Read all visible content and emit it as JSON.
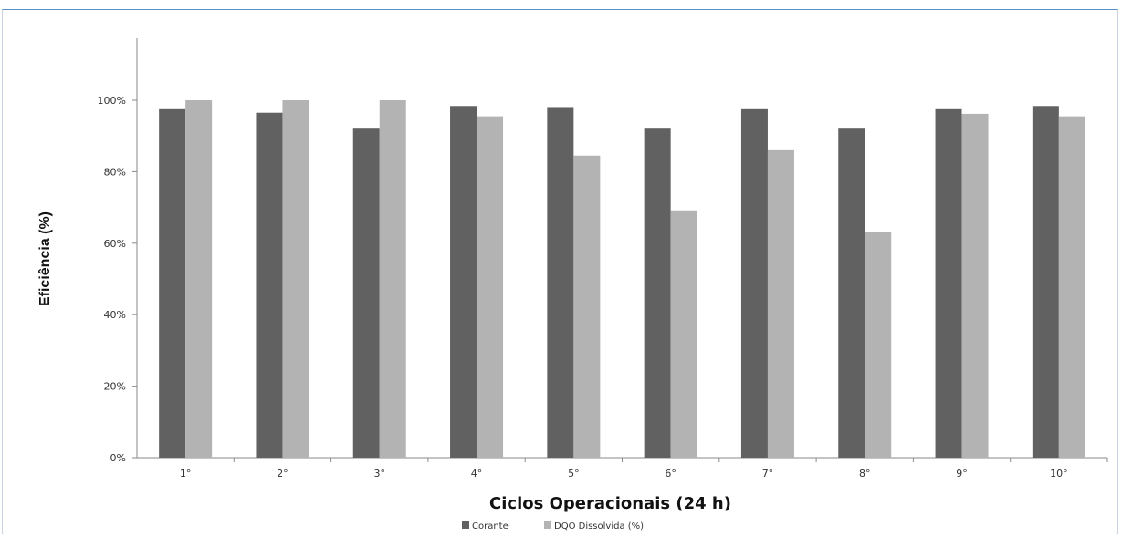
{
  "chart_data": {
    "type": "bar",
    "categories": [
      "1°",
      "2°",
      "3°",
      "4°",
      "5°",
      "6°",
      "7°",
      "8°",
      "9°",
      "10°"
    ],
    "series": [
      {
        "name": "Corante",
        "values": [
          97.5,
          96.5,
          92.3,
          98.4,
          98.1,
          92.3,
          97.5,
          92.3,
          97.5,
          98.4
        ],
        "color": "#616161"
      },
      {
        "name": "DQO Dissolvida (%)",
        "values": [
          100,
          100,
          100,
          95.5,
          84.5,
          69.2,
          86.0,
          63.1,
          96.2,
          95.5
        ],
        "color": "#b3b3b3"
      }
    ],
    "title": "",
    "xlabel": "Ciclos Operacionais (24 h)",
    "ylabel": "Eficiência (%)",
    "ylim": [
      0,
      100
    ],
    "yticks": [
      "0%",
      "20%",
      "40%",
      "60%",
      "80%",
      "100%"
    ],
    "grid": false,
    "legend": "bottom"
  }
}
